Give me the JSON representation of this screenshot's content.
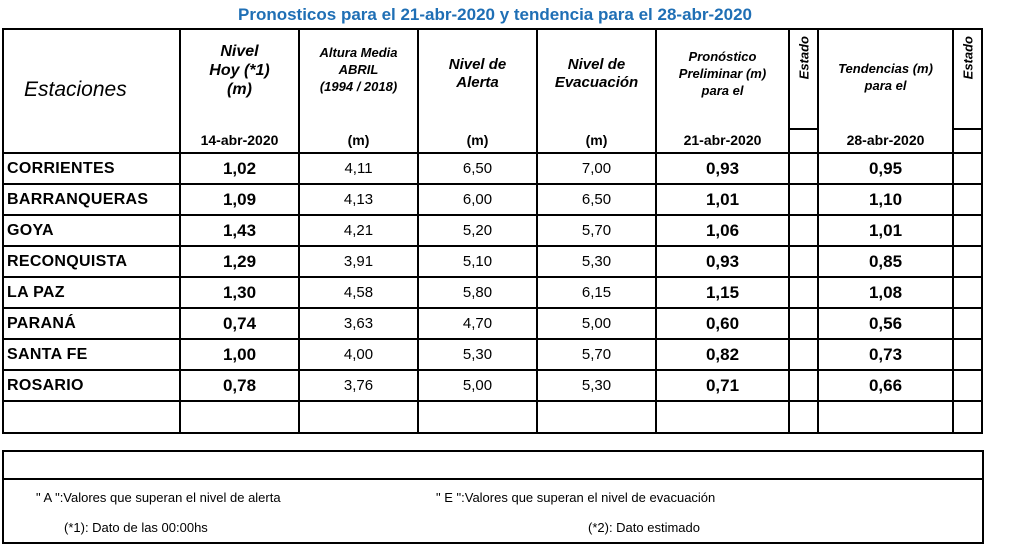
{
  "title": "Pronosticos para el 21-abr-2020 y tendencia para el 28-abr-2020",
  "colors": {
    "title": "#1f6fb5"
  },
  "header": {
    "estaciones": "Estaciones",
    "nivel_hoy": [
      "Nivel",
      "Hoy (*1)",
      "(m)"
    ],
    "nivel_hoy_date": "14-abr-2020",
    "altura_media": [
      "Altura Media",
      "ABRIL",
      "(1994 / 2018)"
    ],
    "altura_unit": "(m)",
    "nivel_alerta": [
      "Nivel de",
      "Alerta"
    ],
    "alerta_unit": "(m)",
    "nivel_evac": [
      "Nivel de",
      "Evacuación"
    ],
    "evac_unit": "(m)",
    "pronostico": [
      "Pronóstico",
      "Preliminar (m)",
      "para el"
    ],
    "pronostico_date": "21-abr-2020",
    "estado": "Estado",
    "tendencias": [
      "Tendencias (m)",
      "para el"
    ],
    "tendencias_date": "28-abr-2020",
    "estado2": "Estado"
  },
  "rows": [
    {
      "station": "CORRIENTES",
      "hoy": "1,02",
      "media": "4,11",
      "alerta": "6,50",
      "evac": "7,00",
      "pron": "0,93",
      "tend": "0,95"
    },
    {
      "station": "BARRANQUERAS",
      "hoy": "1,09",
      "media": "4,13",
      "alerta": "6,00",
      "evac": "6,50",
      "pron": "1,01",
      "tend": "1,10"
    },
    {
      "station": "GOYA",
      "hoy": "1,43",
      "media": "4,21",
      "alerta": "5,20",
      "evac": "5,70",
      "pron": "1,06",
      "tend": "1,01"
    },
    {
      "station": "RECONQUISTA",
      "hoy": "1,29",
      "media": "3,91",
      "alerta": "5,10",
      "evac": "5,30",
      "pron": "0,93",
      "tend": "0,85"
    },
    {
      "station": "LA PAZ",
      "hoy": "1,30",
      "media": "4,58",
      "alerta": "5,80",
      "evac": "6,15",
      "pron": "1,15",
      "tend": "1,08"
    },
    {
      "station": "PARANÁ",
      "hoy": "0,74",
      "media": "3,63",
      "alerta": "4,70",
      "evac": "5,00",
      "pron": "0,60",
      "tend": "0,56"
    },
    {
      "station": "SANTA FE",
      "hoy": "1,00",
      "media": "4,00",
      "alerta": "5,30",
      "evac": "5,70",
      "pron": "0,82",
      "tend": "0,73"
    },
    {
      "station": "ROSARIO",
      "hoy": "0,78",
      "media": "3,76",
      "alerta": "5,00",
      "evac": "5,30",
      "pron": "0,71",
      "tend": "0,66"
    }
  ],
  "notes": {
    "a": "\" A \":Valores que superan el nivel de alerta",
    "e": "\" E \":Valores que superan el nivel de evacuación",
    "n1": "(*1): Dato de las 00:00hs",
    "n2": "(*2): Dato estimado"
  }
}
